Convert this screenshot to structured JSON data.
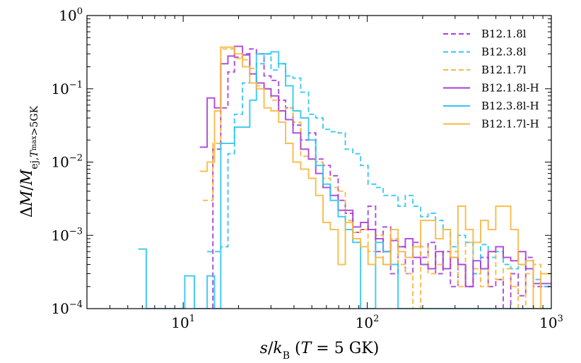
{
  "chart_data": {
    "type": "line",
    "subtype": "step-histogram",
    "xscale": "log",
    "yscale": "log",
    "xlim": [
      3,
      1000
    ],
    "ylim": [
      0.0001,
      1
    ],
    "xlabel": "s/k_B (T = 5 GK)",
    "ylabel": "ΔM/M_ej,T_max>5GK",
    "x_ticks": [
      {
        "value": 10,
        "base": "10",
        "exp": "1"
      },
      {
        "value": 100,
        "base": "10",
        "exp": "2"
      },
      {
        "value": 1000,
        "base": "10",
        "exp": "3"
      }
    ],
    "y_ticks": [
      {
        "value": 0.0001,
        "base": "10",
        "exp": "−4"
      },
      {
        "value": 0.001,
        "base": "10",
        "exp": "−3"
      },
      {
        "value": 0.01,
        "base": "10",
        "exp": "−2"
      },
      {
        "value": 0.1,
        "base": "10",
        "exp": "−1"
      },
      {
        "value": 1,
        "base": "10",
        "exp": "0"
      }
    ],
    "legend_position": "top-right",
    "series": [
      {
        "name": "B12.1.8l",
        "color": "#a63fd6",
        "dashed": true,
        "points": [
          [
            13.2,
            0.0001
          ],
          [
            14.5,
            0.015
          ],
          [
            16,
            0.055
          ],
          [
            17.5,
            0.17
          ],
          [
            19,
            0.27
          ],
          [
            21,
            0.3
          ],
          [
            23,
            0.35
          ],
          [
            25,
            0.3
          ],
          [
            27.5,
            0.15
          ],
          [
            30,
            0.13
          ],
          [
            33,
            0.07
          ],
          [
            36,
            0.055
          ],
          [
            39.5,
            0.032
          ],
          [
            43.5,
            0.02
          ],
          [
            48,
            0.025
          ],
          [
            52.5,
            0.011
          ],
          [
            57.5,
            0.009
          ],
          [
            63,
            0.0065
          ],
          [
            69.5,
            0.003
          ],
          [
            76,
            0.002
          ],
          [
            83.5,
            0.0011
          ],
          [
            92,
            0.0012
          ],
          [
            101,
            0.0025
          ],
          [
            111,
            0.0006
          ],
          [
            122,
            0.0013
          ],
          [
            134,
            0.0003
          ],
          [
            147,
            0.0007
          ],
          [
            161,
            0.0003
          ],
          [
            177,
            0.0008
          ],
          [
            195,
            0.0005
          ],
          [
            214,
            0.0008
          ],
          [
            235,
            0.0003
          ],
          [
            258,
            0.0006
          ],
          [
            283,
            0.0002
          ],
          [
            311,
            0.0004
          ],
          [
            342,
            0.0002
          ],
          [
            376,
            0.0003
          ],
          [
            413,
            0.0005
          ],
          [
            454,
            0.0002
          ],
          [
            499,
            0.00025
          ],
          [
            548,
            0.0001
          ],
          [
            602,
            0.0003
          ],
          [
            661,
            0.00015
          ],
          [
            726,
            0.0005
          ],
          [
            798,
            0.0002
          ],
          [
            877,
            0.0002
          ],
          [
            1000,
            0.0002
          ]
        ]
      },
      {
        "name": "B12.3.8l",
        "color": "#30c6f0",
        "dashed": true,
        "points": [
          [
            13.5,
            0.0006
          ],
          [
            16,
            0.0007
          ],
          [
            17.5,
            0.013
          ],
          [
            19,
            0.045
          ],
          [
            21,
            0.12
          ],
          [
            23,
            0.16
          ],
          [
            25,
            0.22
          ],
          [
            27.5,
            0.3
          ],
          [
            30,
            0.18
          ],
          [
            33,
            0.22
          ],
          [
            36,
            0.15
          ],
          [
            39.5,
            0.14
          ],
          [
            43.5,
            0.09
          ],
          [
            48,
            0.045
          ],
          [
            52.5,
            0.04
          ],
          [
            57.5,
            0.028
          ],
          [
            63,
            0.026
          ],
          [
            69.5,
            0.025
          ],
          [
            76,
            0.015
          ],
          [
            83.5,
            0.013
          ],
          [
            92,
            0.009
          ],
          [
            101,
            0.005
          ],
          [
            111,
            0.0045
          ],
          [
            122,
            0.0035
          ],
          [
            134,
            0.0035
          ],
          [
            147,
            0.0025
          ],
          [
            161,
            0.0035
          ],
          [
            177,
            0.0025
          ],
          [
            195,
            0.0018
          ],
          [
            214,
            0.002
          ],
          [
            235,
            0.0016
          ],
          [
            258,
            0.0012
          ],
          [
            283,
            0.0007
          ],
          [
            311,
            0.001
          ],
          [
            342,
            0.0008
          ],
          [
            376,
            0.0003
          ],
          [
            413,
            0.00075
          ],
          [
            454,
            0.0005
          ],
          [
            499,
            0.0006
          ],
          [
            548,
            0.0004
          ],
          [
            602,
            0.00035
          ],
          [
            661,
            0.0004
          ],
          [
            726,
            0.00035
          ],
          [
            798,
            0.00025
          ],
          [
            877,
            0.0002
          ],
          [
            1000,
            0.0002
          ]
        ]
      },
      {
        "name": "B12.1.7l",
        "color": "#f7b840",
        "dashed": true,
        "points": [
          [
            12.8,
            0.003
          ],
          [
            14.5,
            0.018
          ],
          [
            16,
            0.35
          ],
          [
            17.5,
            0.35
          ],
          [
            19,
            0.26
          ],
          [
            21,
            0.25
          ],
          [
            23,
            0.19
          ],
          [
            25,
            0.11
          ],
          [
            27.5,
            0.1
          ],
          [
            30,
            0.07
          ],
          [
            33,
            0.05
          ],
          [
            36,
            0.055
          ],
          [
            39.5,
            0.035
          ],
          [
            43.5,
            0.012
          ],
          [
            48,
            0.011
          ],
          [
            52.5,
            0.01
          ],
          [
            57.5,
            0.006
          ],
          [
            63,
            0.0045
          ],
          [
            69.5,
            0.004
          ],
          [
            76,
            0.0016
          ],
          [
            83.5,
            0.0011
          ],
          [
            92,
            0.0012
          ],
          [
            101,
            0.0006
          ],
          [
            111,
            0.001
          ],
          [
            122,
            0.0004
          ],
          [
            134,
            0.0009
          ],
          [
            147,
            0.0004
          ],
          [
            161,
            0.0003
          ],
          [
            177,
            0.0001
          ],
          [
            195,
            0.0007
          ],
          [
            214,
            0.0003
          ],
          [
            235,
            0.0004
          ],
          [
            258,
            0.00035
          ],
          [
            283,
            0.0006
          ],
          [
            311,
            0.0002
          ],
          [
            342,
            0.0008
          ],
          [
            376,
            0.00035
          ],
          [
            413,
            0.0002
          ],
          [
            454,
            0.0006
          ],
          [
            499,
            0.00025
          ],
          [
            548,
            0.00035
          ],
          [
            602,
            0.0002
          ],
          [
            661,
            0.0001
          ],
          [
            726,
            0.0003
          ],
          [
            798,
            0.0004
          ],
          [
            877,
            0.0003
          ],
          [
            1000,
            0.0003
          ]
        ]
      },
      {
        "name": "B12.1.8l-H",
        "color": "#a63fd6",
        "dashed": false,
        "points": [
          [
            12.3,
            0.016
          ],
          [
            13.5,
            0.075
          ],
          [
            14.8,
            0.055
          ],
          [
            16,
            0.22
          ],
          [
            17.5,
            0.28
          ],
          [
            19,
            0.38
          ],
          [
            21,
            0.29
          ],
          [
            23,
            0.16
          ],
          [
            25,
            0.12
          ],
          [
            27.5,
            0.1
          ],
          [
            30,
            0.08
          ],
          [
            33,
            0.05
          ],
          [
            36,
            0.038
          ],
          [
            39.5,
            0.025
          ],
          [
            43.5,
            0.015
          ],
          [
            48,
            0.011
          ],
          [
            52.5,
            0.007
          ],
          [
            57.5,
            0.0045
          ],
          [
            63,
            0.0035
          ],
          [
            69.5,
            0.0022
          ],
          [
            76,
            0.0022
          ],
          [
            83.5,
            0.0013
          ],
          [
            92,
            0.0015
          ],
          [
            101,
            0.0012
          ],
          [
            111,
            0.0009
          ],
          [
            122,
            0.0006
          ],
          [
            134,
            0.00085
          ],
          [
            147,
            0.0007
          ],
          [
            161,
            0.0009
          ],
          [
            177,
            0.0005
          ],
          [
            195,
            0.0004
          ],
          [
            214,
            0.00035
          ],
          [
            235,
            0.0006
          ],
          [
            258,
            0.00035
          ],
          [
            283,
            0.0005
          ],
          [
            311,
            0.0004
          ],
          [
            342,
            0.0002
          ],
          [
            376,
            0.00045
          ],
          [
            413,
            0.00035
          ],
          [
            454,
            0.0006
          ],
          [
            499,
            0.0007
          ],
          [
            548,
            0.0005
          ],
          [
            602,
            0.00045
          ],
          [
            661,
            0.0006
          ],
          [
            726,
            0.00035
          ],
          [
            798,
            0.00022
          ],
          [
            877,
            0.00022
          ],
          [
            1000,
            0.00022
          ]
        ]
      },
      {
        "name": "B12.3.8l-H",
        "color": "#30c6f0",
        "dashed": false,
        "points": [
          [
            5.7,
            0.00065
          ],
          [
            6.3,
            0.0001
          ],
          [
            6.9,
            0.0001
          ],
          [
            10.2,
            0.00028
          ],
          [
            11.5,
            0.0001
          ],
          [
            13.5,
            0.00028
          ],
          [
            14.8,
            0.0001
          ],
          [
            16,
            0.018
          ],
          [
            17.5,
            0.018
          ],
          [
            19,
            0.03
          ],
          [
            21,
            0.03
          ],
          [
            23,
            0.07
          ],
          [
            25,
            0.3
          ],
          [
            27.5,
            0.3
          ],
          [
            30,
            0.32
          ],
          [
            33,
            0.22
          ],
          [
            36,
            0.11
          ],
          [
            39.5,
            0.05
          ],
          [
            43.5,
            0.04
          ],
          [
            48,
            0.02
          ],
          [
            52.5,
            0.009
          ],
          [
            57.5,
            0.005
          ],
          [
            63,
            0.003
          ],
          [
            69.5,
            0.0018
          ],
          [
            76,
            0.0012
          ],
          [
            83.5,
            0.0008
          ],
          [
            92,
            0.0001
          ],
          [
            101,
            0.0001
          ],
          [
            111,
            0.0008
          ],
          [
            122,
            0.0006
          ],
          [
            134,
            0.0004
          ],
          [
            147,
            0.0001
          ],
          [
            161,
            0.0001
          ],
          [
            177,
            0.0001
          ],
          [
            1000,
            0.0001
          ]
        ]
      },
      {
        "name": "B12.1.7l-H",
        "color": "#f7b840",
        "dashed": false,
        "points": [
          [
            12.3,
            0.0075
          ],
          [
            13.5,
            0.01
          ],
          [
            14.8,
            0.05
          ],
          [
            16,
            0.37
          ],
          [
            17.5,
            0.37
          ],
          [
            19,
            0.3
          ],
          [
            21,
            0.2
          ],
          [
            23,
            0.12
          ],
          [
            25,
            0.1
          ],
          [
            27.5,
            0.055
          ],
          [
            30,
            0.05
          ],
          [
            33,
            0.035
          ],
          [
            36,
            0.018
          ],
          [
            39.5,
            0.01
          ],
          [
            43.5,
            0.008
          ],
          [
            48,
            0.006
          ],
          [
            52.5,
            0.0035
          ],
          [
            57.5,
            0.0015
          ],
          [
            63,
            0.0012
          ],
          [
            69.5,
            0.0004
          ],
          [
            76,
            0.0015
          ],
          [
            83.5,
            0.0009
          ],
          [
            92,
            0.0007
          ],
          [
            101,
            0.0004
          ],
          [
            111,
            0.0005
          ],
          [
            122,
            0.0004
          ],
          [
            134,
            0.0012
          ],
          [
            147,
            0.0006
          ],
          [
            161,
            0.0005
          ],
          [
            177,
            0.0007
          ],
          [
            195,
            0.0016
          ],
          [
            214,
            0.0016
          ],
          [
            235,
            0.0009
          ],
          [
            258,
            0.0012
          ],
          [
            283,
            0.0005
          ],
          [
            311,
            0.0025
          ],
          [
            342,
            0.0012
          ],
          [
            376,
            0.0008
          ],
          [
            413,
            0.0016
          ],
          [
            454,
            0.0012
          ],
          [
            499,
            0.0025
          ],
          [
            548,
            0.0025
          ],
          [
            602,
            0.0012
          ],
          [
            661,
            0.0004
          ],
          [
            726,
            0.00045
          ],
          [
            798,
            0.0001
          ],
          [
            877,
            0.0003
          ],
          [
            1000,
            0.0003
          ]
        ]
      }
    ]
  }
}
